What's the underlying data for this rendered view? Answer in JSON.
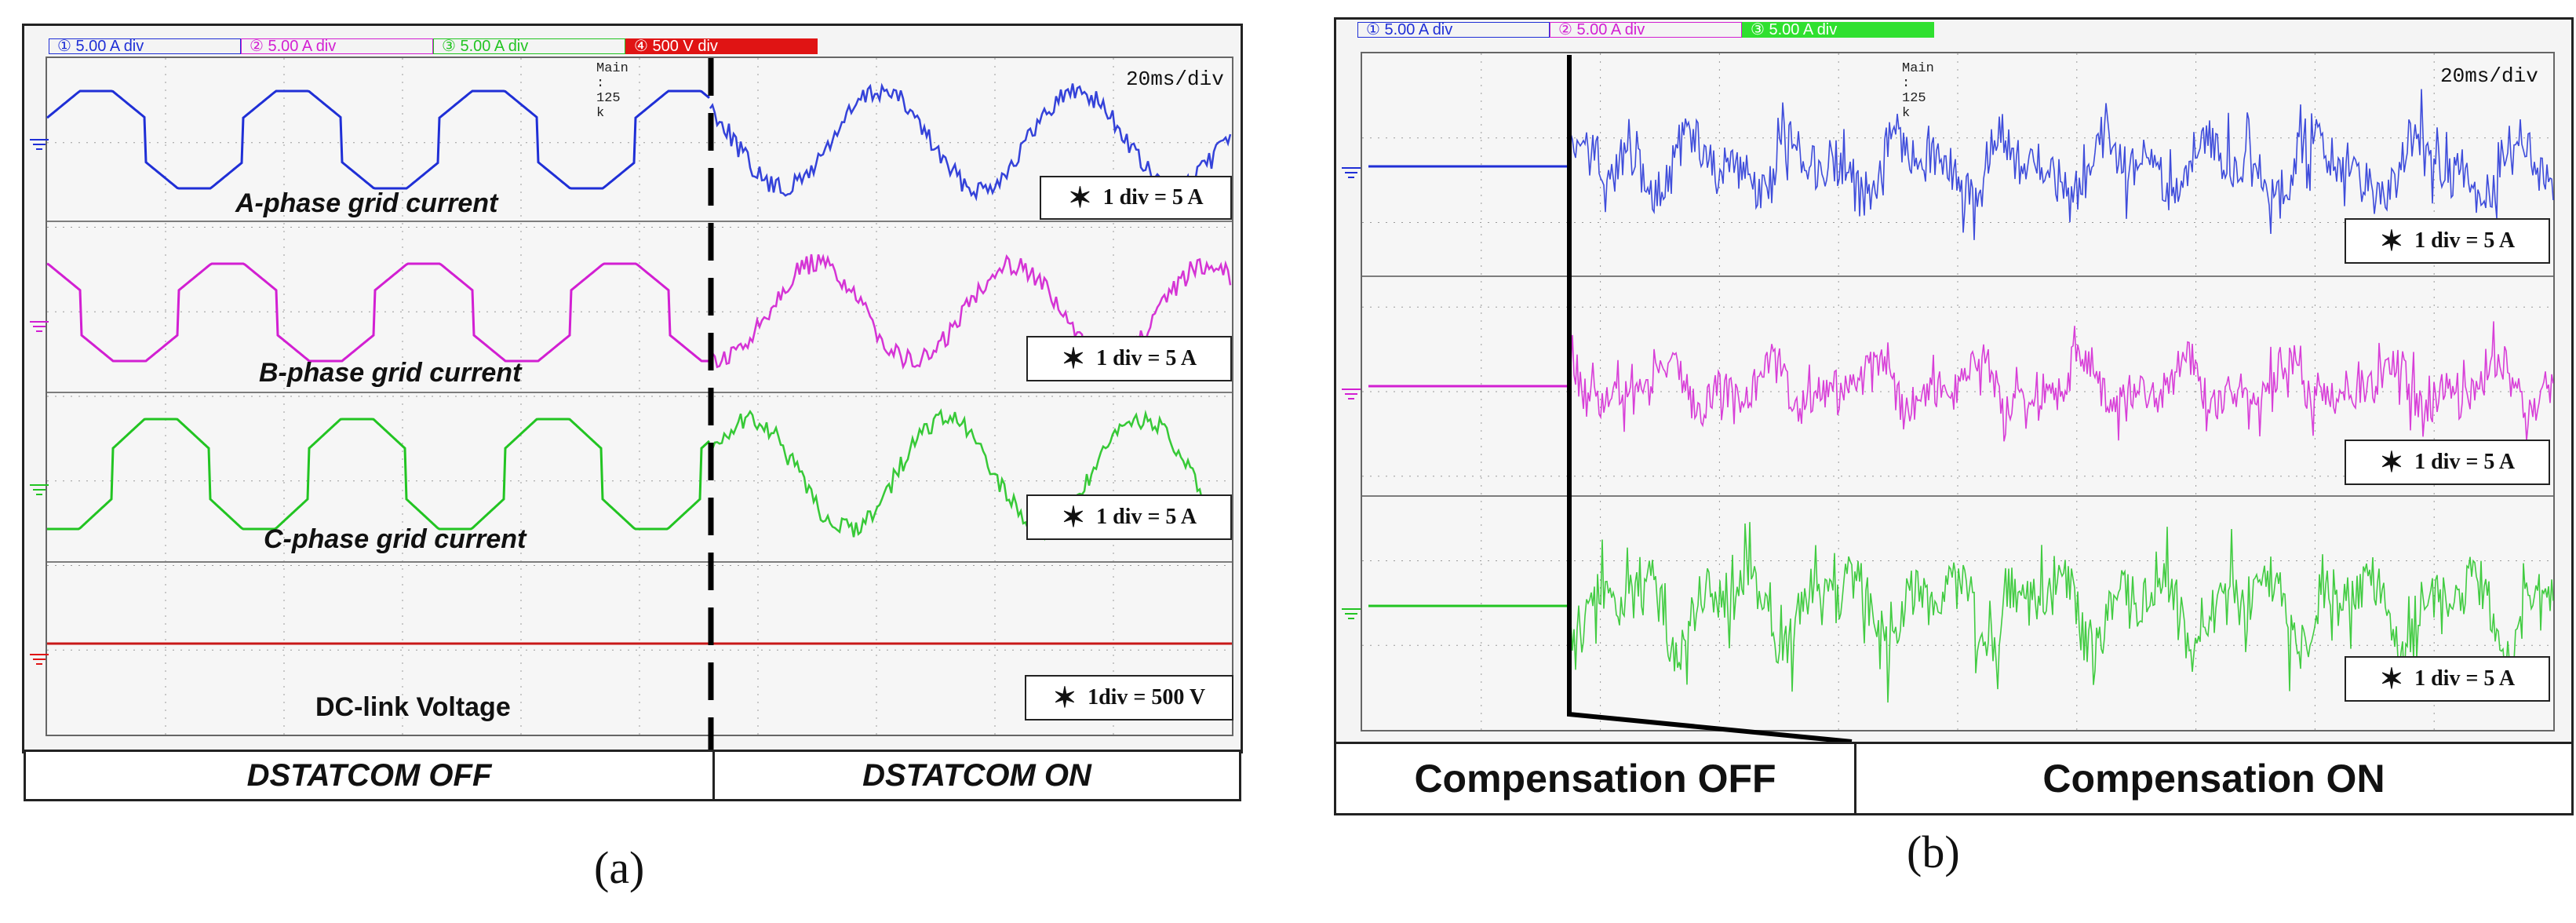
{
  "chart_data": [
    {
      "type": "line",
      "panel": "a",
      "caption": "(a)",
      "channels": [
        {
          "num": "①",
          "label": "5.00 A",
          "unit": "div",
          "color": "#1f2fd6"
        },
        {
          "num": "②",
          "label": "5.00 A",
          "unit": "div",
          "color": "#d21fd2"
        },
        {
          "num": "③",
          "label": "5.00 A",
          "unit": "div",
          "color": "#22c422"
        },
        {
          "num": "④",
          "label": "500 V",
          "unit": "div",
          "color": "#e01414"
        }
      ],
      "main_label": "Main : 125 k",
      "timebase": "20ms/div",
      "series": [
        {
          "name": "A-phase grid current",
          "color": "#1f2fd6",
          "scale": "1 div = 5 A"
        },
        {
          "name": "B-phase grid current",
          "color": "#d21fd2",
          "scale": "1 div = 5 A"
        },
        {
          "name": "C-phase grid current",
          "color": "#22c422",
          "scale": "1 div = 5 A"
        },
        {
          "name": "DC-link Voltage",
          "color": "#e01414",
          "scale": "1div = 500 V"
        }
      ],
      "states": [
        "DSTATCOM OFF",
        "DSTATCOM ON"
      ]
    },
    {
      "type": "line",
      "panel": "b",
      "caption": "(b)",
      "channels": [
        {
          "num": "①",
          "label": "5.00 A",
          "unit": "div",
          "color": "#1f2fd6"
        },
        {
          "num": "②",
          "label": "5.00 A",
          "unit": "div",
          "color": "#d21fd2"
        },
        {
          "num": "③",
          "label": "5.00 A",
          "unit": "div",
          "color": "#22c422"
        }
      ],
      "main_label": "Main : 125 k",
      "timebase": "20ms/div",
      "series": [
        {
          "color": "#1f2fd6",
          "scale": "1 div = 5 A"
        },
        {
          "color": "#d21fd2",
          "scale": "1 div = 5 A"
        },
        {
          "color": "#22c422",
          "scale": "1 div = 5 A"
        }
      ],
      "states": [
        "Compensation OFF",
        "Compensation ON"
      ]
    }
  ]
}
